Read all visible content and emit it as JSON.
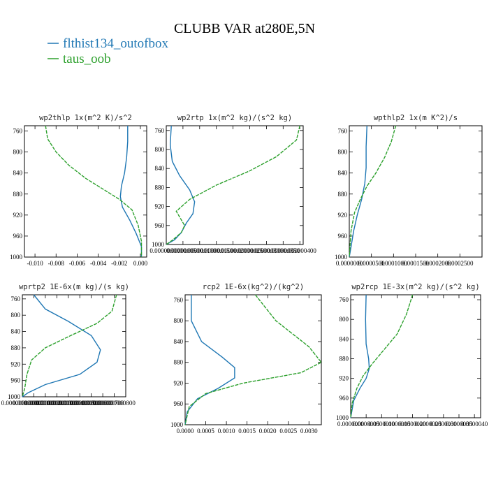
{
  "figure": {
    "title": "CLUBB VAR at280E,5N",
    "legend": [
      {
        "label": "flthist134_outofbox",
        "color": "#1f77b4"
      },
      {
        "label": "taus_oob",
        "color": "#2ca02c"
      }
    ]
  },
  "chart_data": [
    {
      "type": "line",
      "title": "wp2thlp  1x(m^2 K)/s^2",
      "xlim": [
        -0.011,
        0.0006
      ],
      "ylim": [
        1000,
        750
      ],
      "xticks": [
        -0.01,
        -0.008,
        -0.006,
        -0.004,
        -0.002,
        0.0
      ],
      "xtick_labels": [
        "-0.010",
        "-0.008",
        "-0.006",
        "-0.004",
        "-0.002",
        "0.000"
      ],
      "yticks": [
        760,
        800,
        840,
        880,
        920,
        960,
        1000
      ],
      "series": [
        {
          "name": "flthist134_outofbox",
          "color": "#1f77b4",
          "dashed": false,
          "x": [
            -0.0012,
            -0.0012,
            -0.0013,
            -0.0015,
            -0.0018,
            -0.0019,
            -0.0017,
            -0.001,
            -0.0004,
            0.0001,
            0.0001
          ],
          "y": [
            750,
            780,
            810,
            840,
            865,
            885,
            905,
            930,
            955,
            980,
            1000
          ]
        },
        {
          "name": "taus_oob",
          "color": "#2ca02c",
          "dashed": true,
          "x": [
            -0.009,
            -0.0088,
            -0.008,
            -0.0068,
            -0.0052,
            -0.0036,
            -0.002,
            -0.0008,
            -0.0002,
            0.0001,
            0.0001
          ],
          "y": [
            750,
            775,
            800,
            825,
            850,
            870,
            890,
            910,
            940,
            970,
            1000
          ]
        }
      ]
    },
    {
      "type": "line",
      "title": "wp2rtp  1x(m^2 kg)/(s^2 kg)",
      "xlim": [
        0,
        4.1e-07
      ],
      "ylim": [
        1000,
        750
      ],
      "xticks": [
        0,
        5e-08,
        1e-07,
        1.5e-07,
        2e-07,
        2.5e-07,
        3e-07,
        3.5e-07,
        4e-07
      ],
      "xtick_labels": [
        "0.000000000",
        "0.000000050",
        "0.000000100",
        "0.000000150",
        "0.000000200",
        "0.000000250",
        "0.000000300",
        "0.000000350",
        "0.000000400"
      ],
      "yticks": [
        760,
        800,
        840,
        880,
        920,
        960,
        1000
      ],
      "series": [
        {
          "name": "flthist134_outofbox",
          "color": "#1f77b4",
          "dashed": false,
          "x": [
            1.5e-08,
            1.2e-08,
            1.8e-08,
            4e-08,
            7e-08,
            8.5e-08,
            8e-08,
            6e-08,
            4.5e-08,
            2.5e-08,
            0.0
          ],
          "y": [
            750,
            790,
            825,
            855,
            885,
            910,
            935,
            955,
            975,
            990,
            1000
          ]
        },
        {
          "name": "taus_oob",
          "color": "#2ca02c",
          "dashed": true,
          "x": [
            4e-07,
            3.9e-07,
            3.3e-07,
            2.5e-07,
            1.5e-07,
            7e-08,
            3e-08,
            5.5e-08,
            4.5e-08,
            2e-08,
            0.0
          ],
          "y": [
            750,
            780,
            815,
            845,
            875,
            905,
            930,
            960,
            975,
            990,
            1000
          ]
        }
      ]
    },
    {
      "type": "line",
      "title": "wpthlp2  1x(m K^2)/s",
      "xlim": [
        0,
        0.0003
      ],
      "ylim": [
        1000,
        750
      ],
      "xticks": [
        0,
        5e-05,
        0.0001,
        0.00015,
        0.0002,
        0.00025
      ],
      "xtick_labels": [
        "0.0000000",
        "0.0000500",
        "0.0001000",
        "0.0001500",
        "0.0002000",
        "0.0002500"
      ],
      "yticks": [
        760,
        800,
        840,
        880,
        920,
        960,
        1000
      ],
      "series": [
        {
          "name": "flthist134_outofbox",
          "color": "#1f77b4",
          "dashed": false,
          "x": [
            4e-05,
            3.8e-05,
            3.8e-05,
            3.5e-05,
            2.8e-05,
            1.8e-05,
            1e-05,
            5e-06,
            0.0
          ],
          "y": [
            750,
            790,
            830,
            860,
            890,
            920,
            950,
            975,
            1000
          ]
        },
        {
          "name": "taus_oob",
          "color": "#2ca02c",
          "dashed": true,
          "x": [
            0.000105,
            9.5e-05,
            8e-05,
            6e-05,
            4e-05,
            2.5e-05,
            1.2e-05,
            4e-06,
            0.0
          ],
          "y": [
            750,
            780,
            810,
            840,
            865,
            890,
            915,
            950,
            1000
          ]
        }
      ]
    },
    {
      "type": "line",
      "title": "wprtp2  1E-6x(m kg)/(s kg)",
      "xlim": [
        0,
        9e-10
      ],
      "ylim": [
        1000,
        750
      ],
      "xticks": [
        0,
        1e-10,
        2e-10,
        3e-10,
        4e-10,
        5e-10,
        6e-10,
        7e-10,
        8e-10
      ],
      "xtick_labels": [
        "0.000000000000",
        "0.000000000100",
        "0.000000000200",
        "0.000000000300",
        "0.000000000400",
        "0.000000000500",
        "0.000000000600",
        "0.000000000700",
        "0.000000000800"
      ],
      "yticks": [
        760,
        800,
        840,
        880,
        920,
        960,
        1000
      ],
      "series": [
        {
          "name": "flthist134_outofbox",
          "color": "#1f77b4",
          "dashed": false,
          "x": [
            1e-10,
            2e-10,
            4e-10,
            6e-10,
            6.8e-10,
            6.5e-10,
            5e-10,
            2e-10,
            5e-11,
            0.0
          ],
          "y": [
            750,
            785,
            815,
            850,
            885,
            915,
            945,
            970,
            990,
            1000
          ]
        },
        {
          "name": "taus_oob",
          "color": "#2ca02c",
          "dashed": true,
          "x": [
            8.2e-10,
            7.8e-10,
            6.5e-10,
            4.2e-10,
            2e-10,
            8e-11,
            4e-11,
            2e-11,
            0.0
          ],
          "y": [
            750,
            790,
            820,
            850,
            880,
            910,
            945,
            980,
            1000
          ]
        }
      ]
    },
    {
      "type": "line",
      "title": "rcp2  1E-6x(kg^2)/(kg^2)",
      "xlim": [
        0,
        0.0033
      ],
      "ylim": [
        1000,
        750
      ],
      "xticks": [
        0,
        0.0005,
        0.001,
        0.0015,
        0.002,
        0.0025,
        0.003
      ],
      "xtick_labels": [
        "0.0000",
        "0.0005",
        "0.0010",
        "0.0015",
        "0.0020",
        "0.0025",
        "0.0030"
      ],
      "yticks": [
        760,
        800,
        840,
        880,
        920,
        960,
        1000
      ],
      "series": [
        {
          "name": "flthist134_outofbox",
          "color": "#1f77b4",
          "dashed": false,
          "x": [
            0.00015,
            0.00015,
            0.0004,
            0.0009,
            0.0012,
            0.0012,
            0.0008,
            0.0003,
            5e-05,
            0.0
          ],
          "y": [
            750,
            800,
            840,
            870,
            890,
            910,
            930,
            950,
            975,
            1000
          ]
        },
        {
          "name": "taus_oob",
          "color": "#2ca02c",
          "dashed": true,
          "x": [
            0.0017,
            0.0022,
            0.003,
            0.0033,
            0.0028,
            0.0014,
            0.0005,
            0.0001,
            0.0
          ],
          "y": [
            750,
            800,
            850,
            880,
            900,
            920,
            940,
            965,
            1000
          ]
        }
      ]
    },
    {
      "type": "line",
      "title": "wp2rcp  1E-3x(m^2 kg)/(s^2 kg)",
      "xlim": [
        0,
        4.2e-06
      ],
      "ylim": [
        1000,
        750
      ],
      "xticks": [
        0,
        5e-07,
        1e-06,
        1.5e-06,
        2e-06,
        2.5e-06,
        3e-06,
        3.5e-06,
        4e-06
      ],
      "xtick_labels": [
        "0.0000000",
        "0.0000005",
        "0.0000010",
        "0.0000015",
        "0.0000020",
        "0.0000025",
        "0.0000030",
        "0.0000035",
        "0.0000040"
      ],
      "yticks": [
        760,
        800,
        840,
        880,
        920,
        960,
        1000
      ],
      "series": [
        {
          "name": "flthist134_outofbox",
          "color": "#1f77b4",
          "dashed": false,
          "x": [
            5e-07,
            4.8e-07,
            5e-07,
            5.8e-07,
            6e-07,
            5e-07,
            3e-07,
            1e-07,
            0.0
          ],
          "y": [
            750,
            800,
            850,
            880,
            900,
            920,
            940,
            965,
            1000
          ]
        },
        {
          "name": "taus_oob",
          "color": "#2ca02c",
          "dashed": true,
          "x": [
            2e-06,
            1.8e-06,
            1.5e-06,
            1.1e-06,
            7e-07,
            4e-07,
            2e-07,
            5e-08,
            0.0
          ],
          "y": [
            750,
            790,
            830,
            860,
            890,
            915,
            940,
            970,
            1000
          ]
        }
      ]
    }
  ]
}
